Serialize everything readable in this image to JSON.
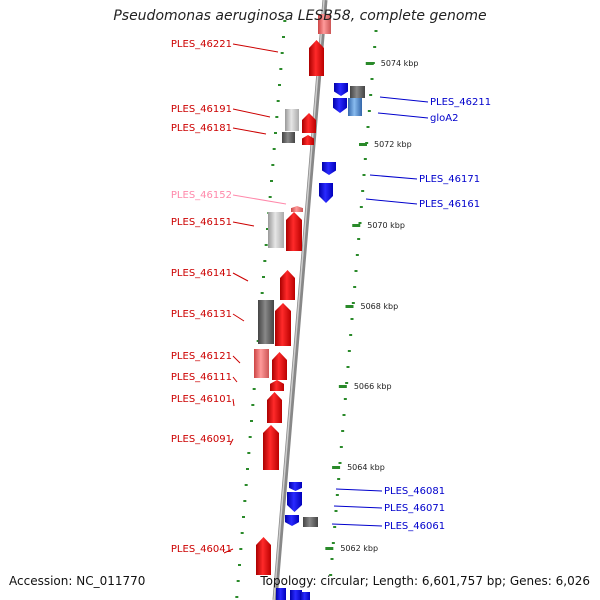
{
  "title": "Pseudomonas aeruginosa LESB58, complete genome",
  "footer": {
    "accession": "Accession: NC_011770",
    "topology": "Topology: circular; Length: 6,601,757 bp; Genes: 6,026"
  },
  "colors": {
    "plus_strand_label": "#cc0000",
    "minus_strand_label": "#0000cc",
    "pseudo_label": "#ff88aa",
    "backbone": "#888888",
    "tick": "#2a8a2a"
  },
  "scale": {
    "unit": "kbp",
    "ticks": [
      {
        "label": "5074 kbp",
        "kbp": 5074
      },
      {
        "label": "5072 kbp",
        "kbp": 5072
      },
      {
        "label": "5070 kbp",
        "kbp": 5070
      },
      {
        "label": "5068 kbp",
        "kbp": 5068
      },
      {
        "label": "5066 kbp",
        "kbp": 5066
      },
      {
        "label": "5064 kbp",
        "kbp": 5064
      },
      {
        "label": "5062 kbp",
        "kbp": 5062
      }
    ]
  },
  "genes_left": [
    {
      "label": "PLES_46221",
      "kind": "gene"
    },
    {
      "label": "PLES_46191",
      "kind": "gene"
    },
    {
      "label": "PLES_46181",
      "kind": "gene"
    },
    {
      "label": "PLES_46152",
      "kind": "pseudo"
    },
    {
      "label": "PLES_46151",
      "kind": "gene"
    },
    {
      "label": "PLES_46141",
      "kind": "gene"
    },
    {
      "label": "PLES_46131",
      "kind": "gene"
    },
    {
      "label": "PLES_46121",
      "kind": "gene"
    },
    {
      "label": "PLES_46111",
      "kind": "gene"
    },
    {
      "label": "PLES_46101",
      "kind": "gene"
    },
    {
      "label": "PLES_46091",
      "kind": "gene"
    },
    {
      "label": "PLES_46041",
      "kind": "gene"
    }
  ],
  "genes_right": [
    {
      "label": "PLES_46211",
      "kind": "gene"
    },
    {
      "label": "gloA2",
      "kind": "gene"
    },
    {
      "label": "PLES_46171",
      "kind": "gene"
    },
    {
      "label": "PLES_46161",
      "kind": "gene"
    },
    {
      "label": "PLES_46081",
      "kind": "gene"
    },
    {
      "label": "PLES_46071",
      "kind": "gene"
    },
    {
      "label": "PLES_46061",
      "kind": "gene"
    }
  ]
}
